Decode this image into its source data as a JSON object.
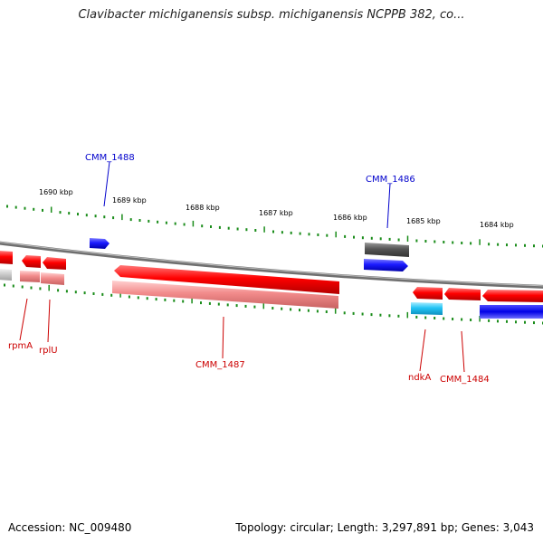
{
  "title": "Clavibacter michiganensis subsp. michiganensis NCPPB 382, co...",
  "footer": {
    "accession": "Accession: NC_009480",
    "summary": "Topology: circular; Length: 3,297,891 bp; Genes: 3,043"
  },
  "scale": {
    "unit": "kbp",
    "ticks": [
      "1690 kbp",
      "1689 kbp",
      "1688 kbp",
      "1687 kbp",
      "1686 kbp",
      "1685 kbp",
      "1684 kbp"
    ]
  },
  "colors": {
    "backbone": "#8a8a8a",
    "scale_ticks": "#1a8c1a",
    "forward_gene": "#1a1aff",
    "reverse_gene": "#ff0000",
    "reverse_label": "#cc0000",
    "forward_label": "#0000cc",
    "pseudo_gene": "#555555",
    "rna_gene": "#33ccff"
  },
  "labels": {
    "forward": [
      "CMM_1488",
      "CMM_1486"
    ],
    "reverse": [
      "rpmA",
      "rplU",
      "CMM_1487",
      "ndkA",
      "CMM_1484"
    ]
  }
}
